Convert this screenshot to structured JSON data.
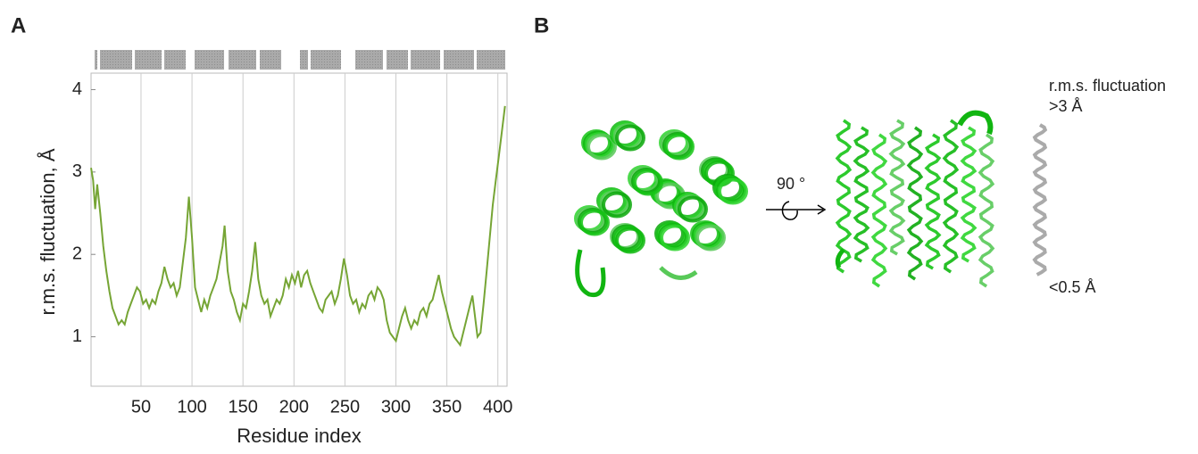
{
  "panel_labels": [
    "A",
    "B"
  ],
  "chart_data": {
    "type": "line",
    "xlabel": "Residue index",
    "ylabel": "r.m.s. fluctuation, Å",
    "x": [
      1,
      3,
      5,
      7,
      10,
      13,
      16,
      19,
      22,
      25,
      28,
      31,
      34,
      37,
      40,
      43,
      46,
      49,
      52,
      55,
      58,
      61,
      64,
      67,
      70,
      73,
      76,
      79,
      82,
      85,
      88,
      91,
      94,
      97,
      100,
      103,
      106,
      109,
      112,
      115,
      118,
      121,
      124,
      127,
      130,
      132,
      135,
      138,
      141,
      144,
      147,
      150,
      153,
      156,
      159,
      162,
      165,
      168,
      171,
      174,
      177,
      180,
      183,
      186,
      189,
      192,
      195,
      198,
      201,
      204,
      207,
      210,
      213,
      216,
      219,
      222,
      225,
      228,
      231,
      234,
      237,
      240,
      243,
      246,
      249,
      252,
      255,
      258,
      261,
      264,
      267,
      270,
      273,
      276,
      279,
      282,
      285,
      288,
      291,
      294,
      297,
      300,
      303,
      306,
      309,
      312,
      315,
      318,
      321,
      324,
      327,
      330,
      333,
      336,
      339,
      342,
      345,
      348,
      351,
      354,
      357,
      360,
      363,
      366,
      369,
      372,
      375,
      377,
      380,
      383,
      386,
      389,
      392,
      395,
      398,
      401,
      404,
      407
    ],
    "values": [
      3.05,
      2.9,
      2.55,
      2.85,
      2.5,
      2.1,
      1.8,
      1.55,
      1.35,
      1.25,
      1.15,
      1.2,
      1.15,
      1.3,
      1.4,
      1.5,
      1.6,
      1.55,
      1.4,
      1.45,
      1.35,
      1.45,
      1.4,
      1.55,
      1.65,
      1.85,
      1.7,
      1.6,
      1.65,
      1.5,
      1.6,
      1.9,
      2.2,
      2.7,
      2.2,
      1.6,
      1.45,
      1.3,
      1.45,
      1.35,
      1.5,
      1.6,
      1.7,
      1.9,
      2.1,
      2.35,
      1.8,
      1.55,
      1.45,
      1.3,
      1.2,
      1.4,
      1.35,
      1.55,
      1.8,
      2.15,
      1.7,
      1.5,
      1.4,
      1.45,
      1.25,
      1.35,
      1.45,
      1.4,
      1.5,
      1.7,
      1.6,
      1.75,
      1.65,
      1.8,
      1.6,
      1.75,
      1.8,
      1.65,
      1.55,
      1.45,
      1.35,
      1.3,
      1.45,
      1.5,
      1.55,
      1.4,
      1.5,
      1.7,
      1.95,
      1.75,
      1.5,
      1.4,
      1.45,
      1.3,
      1.4,
      1.35,
      1.5,
      1.55,
      1.45,
      1.6,
      1.55,
      1.45,
      1.2,
      1.05,
      1.0,
      0.95,
      1.1,
      1.25,
      1.35,
      1.2,
      1.1,
      1.2,
      1.15,
      1.3,
      1.35,
      1.25,
      1.4,
      1.45,
      1.6,
      1.75,
      1.55,
      1.4,
      1.25,
      1.1,
      1.0,
      0.95,
      0.9,
      1.05,
      1.2,
      1.35,
      1.5,
      1.3,
      1.0,
      1.05,
      1.4,
      1.8,
      2.2,
      2.6,
      2.9,
      3.2,
      3.5,
      3.8
    ],
    "color": "#76a535",
    "xlim": [
      1,
      409
    ],
    "ylim": [
      0.4,
      4.2
    ],
    "xticks": [
      50,
      100,
      150,
      200,
      250,
      300,
      350,
      400
    ],
    "yticks": [
      1,
      2,
      3,
      4
    ],
    "grid": true
  },
  "panel_b": {
    "rotation_label": "90 °",
    "scale_title": "r.m.s. fluctuation",
    "scale_high": ">3 Å",
    "scale_low": "<0.5 Å"
  }
}
